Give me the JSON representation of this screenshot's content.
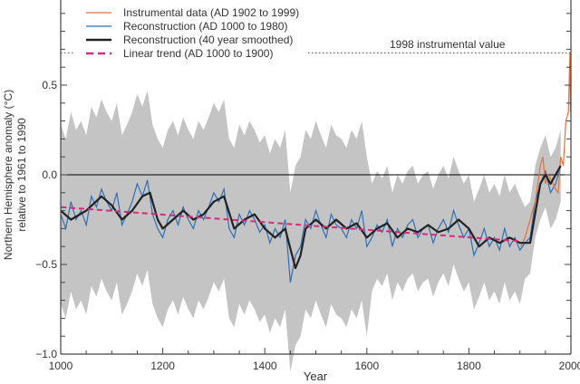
{
  "chart_data": {
    "type": "line",
    "xlabel": "Year",
    "ylabel": [
      "Northern Hemisphere anomaly (°C)",
      "relative to 1961 to 1990"
    ],
    "xlim": [
      1000,
      2000
    ],
    "ylim": [
      -1.0,
      1.0
    ],
    "xticks": [
      1000,
      1200,
      1400,
      1600,
      1800,
      2000
    ],
    "xtick_labels": [
      "1000",
      "1200",
      "1400",
      "1600",
      "1800",
      "2000"
    ],
    "yticks": [
      -1.0,
      -0.5,
      0.0,
      0.5,
      1.0
    ],
    "ytick_labels": [
      "−1.0",
      "−0.5",
      "0.0",
      "0.5",
      "1.0"
    ],
    "legend_position": "top-left",
    "legend": [
      {
        "label": "Instrumental data (AD 1902 to 1999)",
        "color": "#e8703a",
        "style": "solid"
      },
      {
        "label": "Reconstruction (AD 1000 to 1980)",
        "color": "#2f6fb5",
        "style": "solid"
      },
      {
        "label": "Reconstruction (40 year smoothed)",
        "color": "#222222",
        "style": "solid-thick"
      },
      {
        "label": "Linear trend (AD 1000 to 1900)",
        "color": "#d62a7a",
        "style": "dashed"
      }
    ],
    "annotation": {
      "label": "1998 instrumental value",
      "value": 0.68
    },
    "uncertainty_color": "#c4c4c4",
    "reconstruction": {
      "x_start": 1000,
      "step": 10,
      "values": [
        -0.22,
        -0.3,
        -0.15,
        -0.25,
        -0.2,
        -0.28,
        -0.12,
        -0.18,
        -0.08,
        -0.15,
        -0.2,
        -0.1,
        -0.28,
        -0.22,
        -0.15,
        -0.05,
        -0.12,
        -0.03,
        -0.22,
        -0.3,
        -0.35,
        -0.25,
        -0.2,
        -0.28,
        -0.18,
        -0.25,
        -0.3,
        -0.2,
        -0.25,
        -0.18,
        -0.1,
        -0.15,
        -0.08,
        -0.3,
        -0.35,
        -0.22,
        -0.28,
        -0.2,
        -0.25,
        -0.32,
        -0.28,
        -0.38,
        -0.3,
        -0.35,
        -0.25,
        -0.6,
        -0.45,
        -0.4,
        -0.25,
        -0.3,
        -0.2,
        -0.28,
        -0.35,
        -0.22,
        -0.28,
        -0.3,
        -0.35,
        -0.25,
        -0.3,
        -0.2,
        -0.4,
        -0.35,
        -0.28,
        -0.32,
        -0.25,
        -0.4,
        -0.3,
        -0.35,
        -0.28,
        -0.25,
        -0.35,
        -0.3,
        -0.28,
        -0.38,
        -0.3,
        -0.25,
        -0.32,
        -0.2,
        -0.28,
        -0.35,
        -0.3,
        -0.45,
        -0.38,
        -0.3,
        -0.4,
        -0.35,
        -0.42,
        -0.3,
        -0.4,
        -0.35,
        -0.42,
        -0.38,
        -0.35,
        -0.15,
        -0.05,
        0.02,
        -0.1,
        -0.05,
        0.05
      ]
    },
    "smoothed": {
      "x": [
        1000,
        1020,
        1050,
        1080,
        1100,
        1120,
        1140,
        1160,
        1175,
        1190,
        1200,
        1220,
        1240,
        1260,
        1280,
        1300,
        1320,
        1340,
        1360,
        1380,
        1400,
        1420,
        1440,
        1460,
        1470,
        1480,
        1500,
        1520,
        1540,
        1560,
        1580,
        1600,
        1620,
        1640,
        1660,
        1680,
        1700,
        1720,
        1740,
        1760,
        1780,
        1800,
        1820,
        1840,
        1860,
        1880,
        1900,
        1920,
        1940,
        1950,
        1960,
        1980
      ],
      "y": [
        -0.2,
        -0.25,
        -0.2,
        -0.12,
        -0.17,
        -0.25,
        -0.2,
        -0.12,
        -0.1,
        -0.25,
        -0.3,
        -0.25,
        -0.2,
        -0.25,
        -0.22,
        -0.15,
        -0.12,
        -0.3,
        -0.25,
        -0.22,
        -0.3,
        -0.35,
        -0.3,
        -0.52,
        -0.45,
        -0.3,
        -0.25,
        -0.3,
        -0.25,
        -0.3,
        -0.27,
        -0.35,
        -0.3,
        -0.27,
        -0.35,
        -0.3,
        -0.32,
        -0.28,
        -0.32,
        -0.3,
        -0.25,
        -0.3,
        -0.4,
        -0.35,
        -0.38,
        -0.35,
        -0.38,
        -0.38,
        -0.05,
        0.0,
        -0.05,
        0.05
      ]
    },
    "instrumental": {
      "x": [
        1902,
        1910,
        1920,
        1930,
        1940,
        1945,
        1950,
        1955,
        1960,
        1965,
        1970,
        1975,
        1980,
        1985,
        1990,
        1995,
        1998,
        1999
      ],
      "y": [
        -0.4,
        -0.35,
        -0.25,
        -0.15,
        0.05,
        0.1,
        -0.05,
        0.0,
        -0.02,
        -0.05,
        -0.08,
        -0.1,
        0.1,
        0.05,
        0.3,
        0.35,
        0.68,
        0.35
      ]
    },
    "uncertainty_halfwidth": [
      {
        "until": 1600,
        "value": 0.5
      },
      {
        "until": 1900,
        "value": 0.3
      },
      {
        "until": 1980,
        "value": 0.2
      }
    ],
    "linear_trend": {
      "x": [
        1000,
        1900
      ],
      "y": [
        -0.18,
        -0.37
      ]
    }
  }
}
